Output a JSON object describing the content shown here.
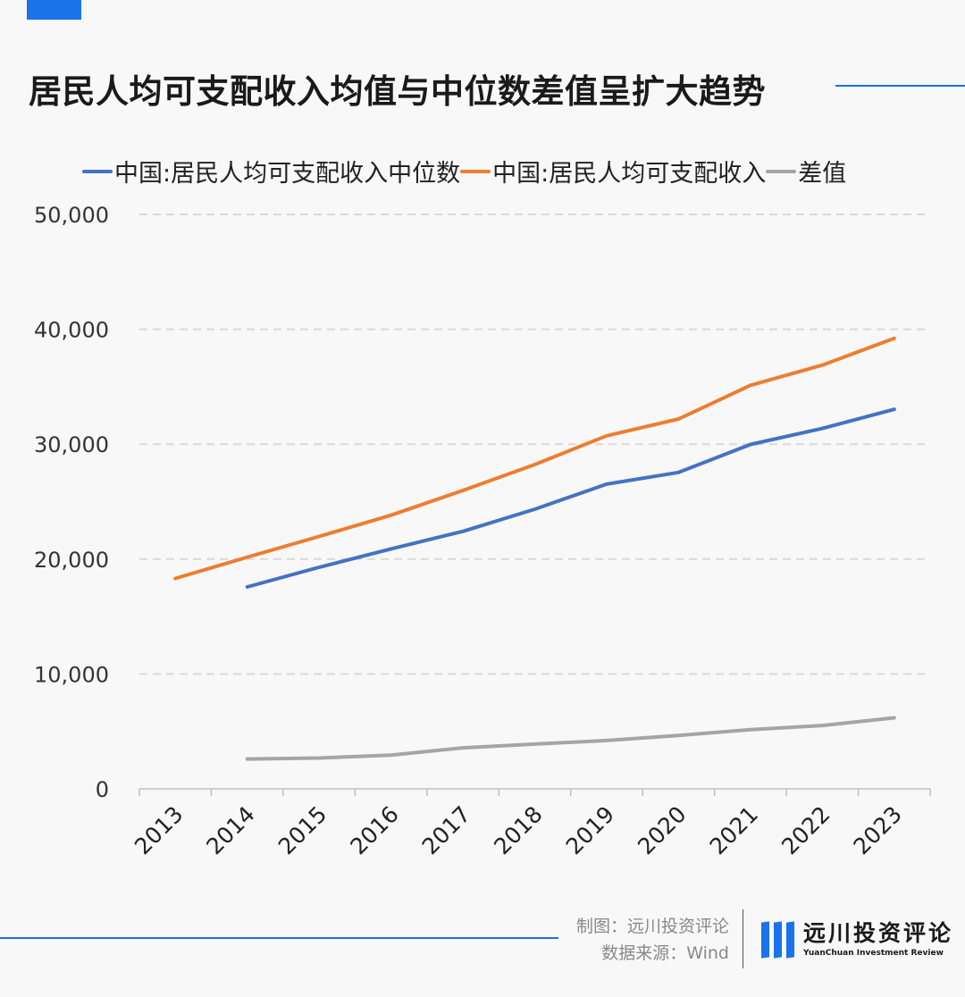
{
  "header": {
    "title": "居民人均可支配收入均值与中位数差值呈扩大趋势"
  },
  "colors": {
    "accent": "#1a73e8",
    "median": "#4472c4",
    "mean": "#ed7d31",
    "diff": "#a5a5a5",
    "grid": "#d9d9d9"
  },
  "chart_data": {
    "type": "line",
    "categories": [
      "2013",
      "2014",
      "2015",
      "2016",
      "2017",
      "2018",
      "2019",
      "2020",
      "2021",
      "2022",
      "2023"
    ],
    "series": [
      {
        "name": "中国:居民人均可支配收入中位数",
        "color": "#4472c4",
        "values": [
          null,
          17570,
          19281,
          20883,
          22408,
          24336,
          26523,
          27540,
          29975,
          31370,
          33036
        ]
      },
      {
        "name": "中国:居民人均可支配收入",
        "color": "#ed7d31",
        "values": [
          18311,
          20167,
          21966,
          23821,
          25974,
          28228,
          30733,
          32189,
          35128,
          36883,
          39218
        ]
      },
      {
        "name": "差值",
        "color": "#a5a5a5",
        "values": [
          null,
          2597,
          2685,
          2938,
          3566,
          3892,
          4210,
          4649,
          5153,
          5513,
          6182
        ]
      }
    ],
    "yticks": [
      "0",
      "10,000",
      "20,000",
      "30,000",
      "40,000",
      "50,000"
    ],
    "ylim": [
      0,
      50000
    ],
    "grid": true,
    "legend_position": "top"
  },
  "footer": {
    "credit_line1": "制图：远川投资评论",
    "credit_line2": "数据来源：Wind",
    "brand_cn": "远川投资评论",
    "brand_en": "YuanChuan Investment Review"
  }
}
